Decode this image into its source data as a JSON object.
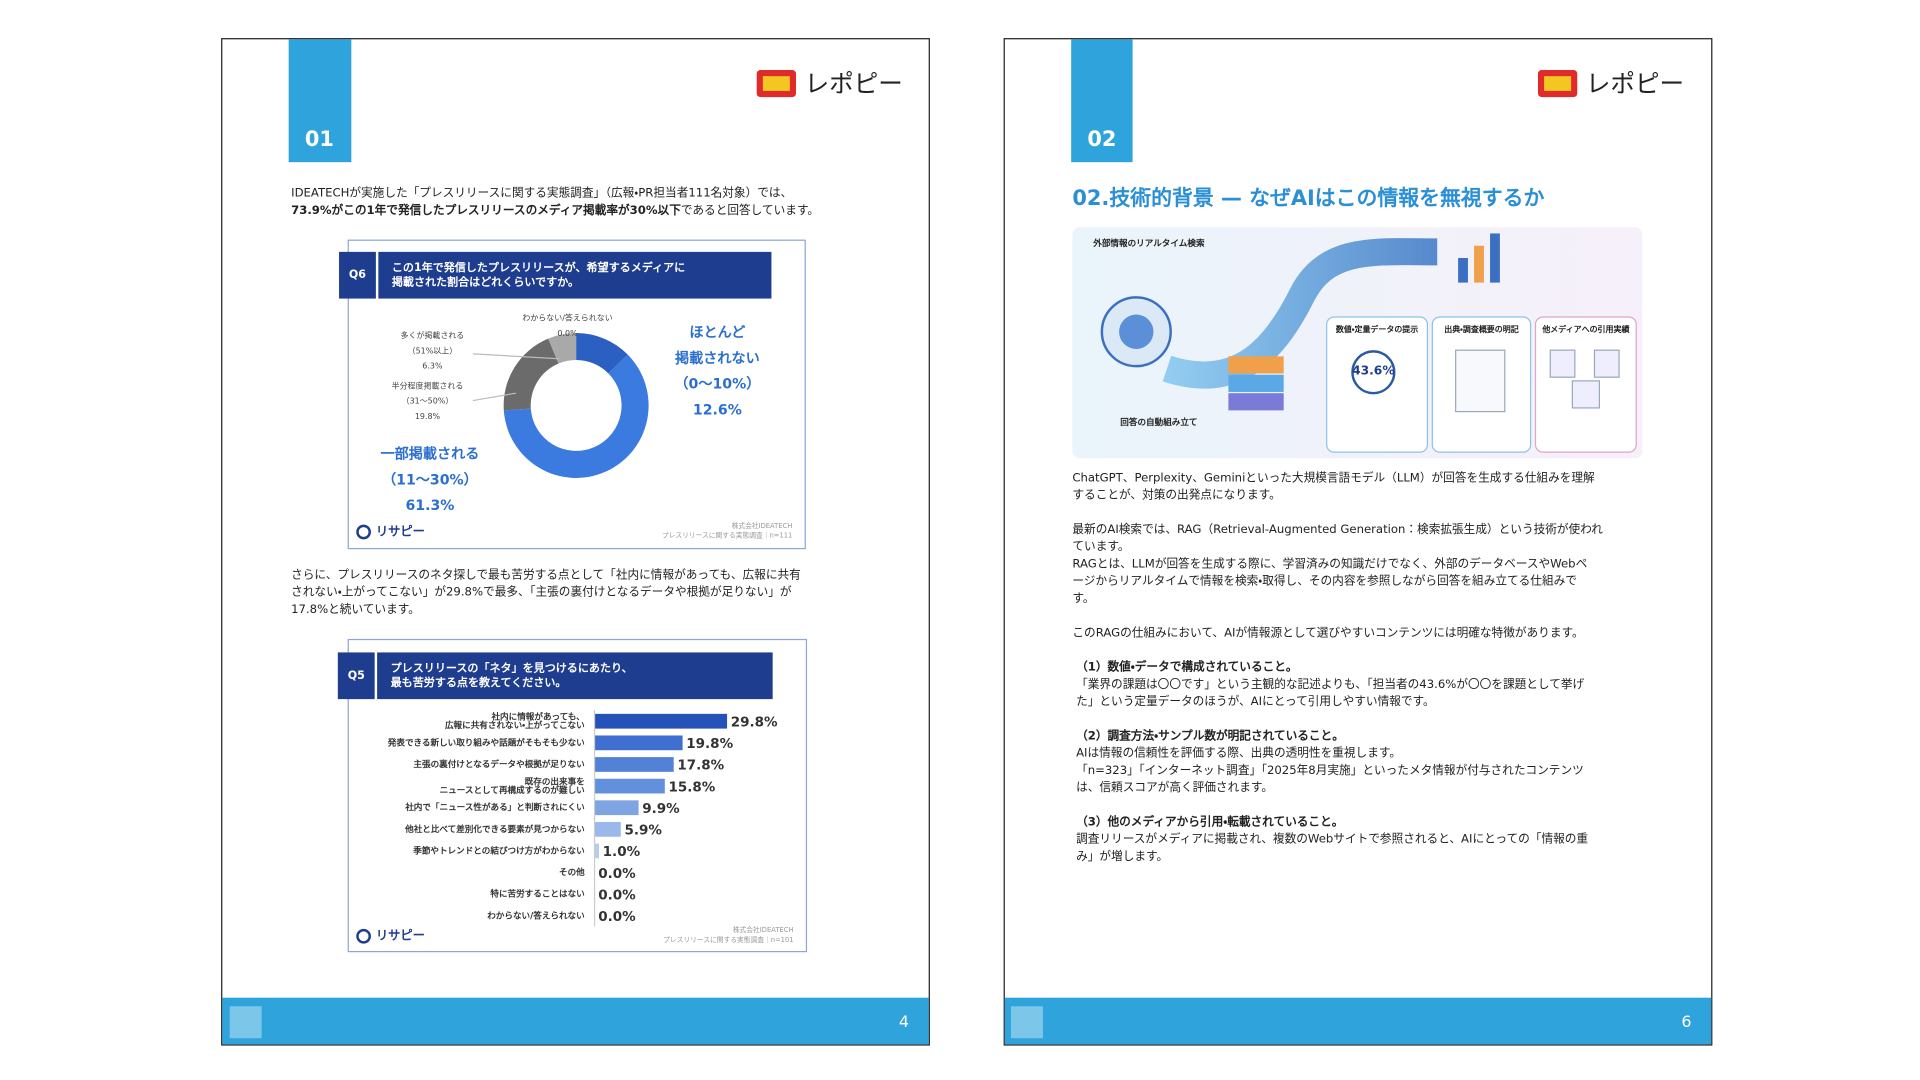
{
  "pages": [
    {
      "section": "01",
      "logo": "レポピー",
      "number": "4",
      "intro": {
        "line1": "IDEATECHが実施した「プレスリリースに関する実態調査」（広報・PR担当者111名対象）では、",
        "line2_bold": "73.9%がこの1年で発信したプレスリリースのメディア掲載率が30%以下",
        "line2_rest": "であると回答しています。"
      },
      "donut_chart": {
        "type": "pie",
        "qid": "Q6",
        "question": [
          "この1年で発信したプレスリリースが、希望するメディアに",
          "掲載された割合はどれくらいですか。"
        ],
        "categories": [
          [
            "ほとんど",
            "掲載されない",
            "（0〜10%）"
          ],
          [
            "一部掲載される",
            "（11〜30%）"
          ],
          [
            "半分程度掲載される",
            "（31〜50%）"
          ],
          [
            "多くが掲載される",
            "（51%以上）"
          ],
          [
            "わからない/答えられない"
          ]
        ],
        "values": [
          12.6,
          61.3,
          19.8,
          6.3,
          0.0
        ],
        "value_labels": [
          "12.6%",
          "61.3%",
          "19.8%",
          "6.3%",
          "0.0%"
        ],
        "colors": [
          "#2b5fc2",
          "#3b7be0",
          "#6b6b6b",
          "#a9a9a9",
          "#d9d9d9"
        ],
        "brand": "リサピー",
        "source": [
          "株式会社IDEATECH",
          "プレスリリースに関する実態調査｜n=111"
        ]
      },
      "middle": [
        "さらに、プレスリリースのネタ探しで最も苦労する点として「社内に情報があっても、広報に共有",
        "されない・上がってこない」が29.8%で最多、「主張の裏付けとなるデータや根拠が足りない」が",
        "17.8%と続いています。"
      ],
      "bar_chart": {
        "type": "bar",
        "qid": "Q5",
        "question": [
          "プレスリリースの「ネタ」を見つけるにあたり、",
          "最も苦労する点を教えてください。"
        ],
        "categories": [
          [
            "社内に情報があっても、",
            "広報に共有されない・上がってこない"
          ],
          [
            "発表できる新しい取り組みや話題がそもそも少ない"
          ],
          [
            "主張の裏付けとなるデータや根拠が足りない"
          ],
          [
            "既存の出来事を",
            "ニュースとして再構成するのが難しい"
          ],
          [
            "社内で「ニュース性がある」と判断されにくい"
          ],
          [
            "他社と比べて差別化できる要素が見つからない"
          ],
          [
            "季節やトレンドとの結びつけ方がわからない"
          ],
          [
            "その他"
          ],
          [
            "特に苦労することはない"
          ],
          [
            "わからない/答えられない"
          ]
        ],
        "values": [
          29.8,
          19.8,
          17.8,
          15.8,
          9.9,
          5.9,
          1.0,
          0.0,
          0.0,
          0.0
        ],
        "value_labels": [
          "29.8%",
          "19.8%",
          "17.8%",
          "15.8%",
          "9.9%",
          "5.9%",
          "1.0%",
          "0.0%",
          "0.0%",
          "0.0%"
        ],
        "colors": [
          "#2452b8",
          "#3f6fcf",
          "#5282d6",
          "#6390dc",
          "#7ea4e3",
          "#9ab8ea",
          "#b7cdf0",
          "#c9d8f3",
          "#c9d8f3",
          "#c9d8f3"
        ],
        "brand": "リサピー",
        "source": [
          "株式会社IDEATECH",
          "プレスリリースに関する実態調査｜n=101"
        ]
      }
    },
    {
      "section": "02",
      "logo": "レポピー",
      "number": "6",
      "title": "02.技術的背景 — なぜAIはこの情報を無視するか",
      "illustration": {
        "labels": [
          "外部情報のリアルタイム検索",
          "数値・定量データの提示",
          "出典・調査概要の明記",
          "他メディアへの引用実績",
          "回答の自動組み立て",
          "43.6%"
        ]
      },
      "paragraphs": [
        [
          "ChatGPT、Perplexity、Geminiといった大規模言語モデル（LLM）が回答を生成する仕組みを理解",
          "することが、対策の出発点になります。"
        ],
        [
          "最新のAI検索では、RAG（Retrieval-Augmented Generation：検索拡張生成）という技術が使われ",
          "ています。",
          "RAGとは、LLMが回答を生成する際に、学習済みの知識だけでなく、外部のデータベースやWebペ",
          "ージからリアルタイムで情報を検索・取得し、その内容を参照しながら回答を組み立てる仕組みで",
          "す。"
        ],
        [
          "このRAGの仕組みにおいて、AIが情報源として選びやすいコンテンツには明確な特徴があります。"
        ]
      ],
      "points": [
        {
          "heading": "（1）数値・データで構成されていること。",
          "lines": [
            "「業界の課題は〇〇です」という主観的な記述よりも、「担当者の43.6%が〇〇を課題として挙げ",
            "た」という定量データのほうが、AIにとって引用しやすい情報です。"
          ]
        },
        {
          "heading": "（2）調査方法・サンプル数が明記されていること。",
          "lines": [
            "AIは情報の信頼性を評価する際、出典の透明性を重視します。",
            "「n=323」「インターネット調査」「2025年8月実施」といったメタ情報が付与されたコンテンツ",
            "は、信頼スコアが高く評価されます。"
          ]
        },
        {
          "heading": "（3）他のメディアから引用・転載されていること。",
          "lines": [
            "調査リリースがメディアに掲載され、複数のWebサイトで参照されると、AIにとっての「情報の重",
            "み」が増します。"
          ]
        }
      ]
    }
  ]
}
